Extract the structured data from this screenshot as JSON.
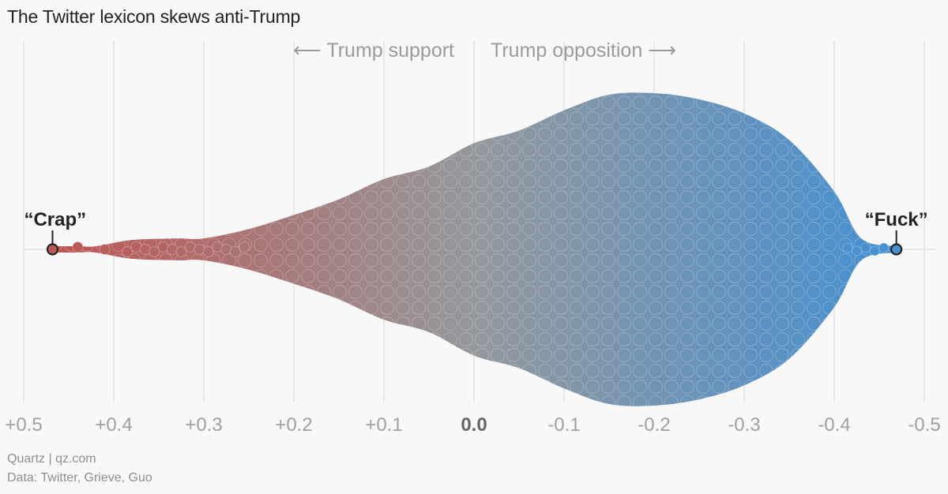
{
  "title": "The Twitter lexicon skews anti-Trump",
  "direction_labels": {
    "left": "⟵ Trump support",
    "right": "Trump opposition ⟶"
  },
  "footer": {
    "source": "Quartz | qz.com",
    "data": "Data: Twitter, Grieve, Guo"
  },
  "colors": {
    "support": "#c0514d",
    "neutral": "#94989c",
    "opposition": "#3f8fd6",
    "annotation": "#222222",
    "grid": "#d9d9d9",
    "tick": "#a0a0a0",
    "background": "#f8f8f8"
  },
  "chart_data": {
    "type": "scatter",
    "subtype": "beeswarm",
    "title": "The Twitter lexicon skews anti-Trump",
    "xlabel": "",
    "ylabel": "",
    "xlim": [
      0.5,
      -0.5
    ],
    "x_ticks": [
      0.5,
      0.4,
      0.3,
      0.2,
      0.1,
      0.0,
      -0.1,
      -0.2,
      -0.3,
      -0.4,
      -0.5
    ],
    "x_tick_labels": [
      "+0.5",
      "+0.4",
      "+0.3",
      "+0.2",
      "+0.1",
      "0.0",
      "-0.1",
      "-0.2",
      "-0.3",
      "-0.4",
      "-0.5"
    ],
    "grid": true,
    "density_profile": {
      "x": [
        0.47,
        0.44,
        0.42,
        0.38,
        0.33,
        0.3,
        0.25,
        0.2,
        0.15,
        0.1,
        0.05,
        0.0,
        -0.05,
        -0.1,
        -0.15,
        -0.2,
        -0.25,
        -0.3,
        -0.35,
        -0.4,
        -0.43,
        -0.47
      ],
      "relative_half_width": [
        0.02,
        0.02,
        0.02,
        0.06,
        0.07,
        0.07,
        0.13,
        0.22,
        0.32,
        0.45,
        0.53,
        0.68,
        0.76,
        0.89,
        0.99,
        1.0,
        0.96,
        0.87,
        0.7,
        0.37,
        0.07,
        0.02
      ]
    },
    "annotations": [
      {
        "label": "“Crap”",
        "x": 0.468,
        "position": "above",
        "align": "left"
      },
      {
        "label": "“Fuck”",
        "x": -0.469,
        "position": "above",
        "align": "right"
      }
    ]
  }
}
